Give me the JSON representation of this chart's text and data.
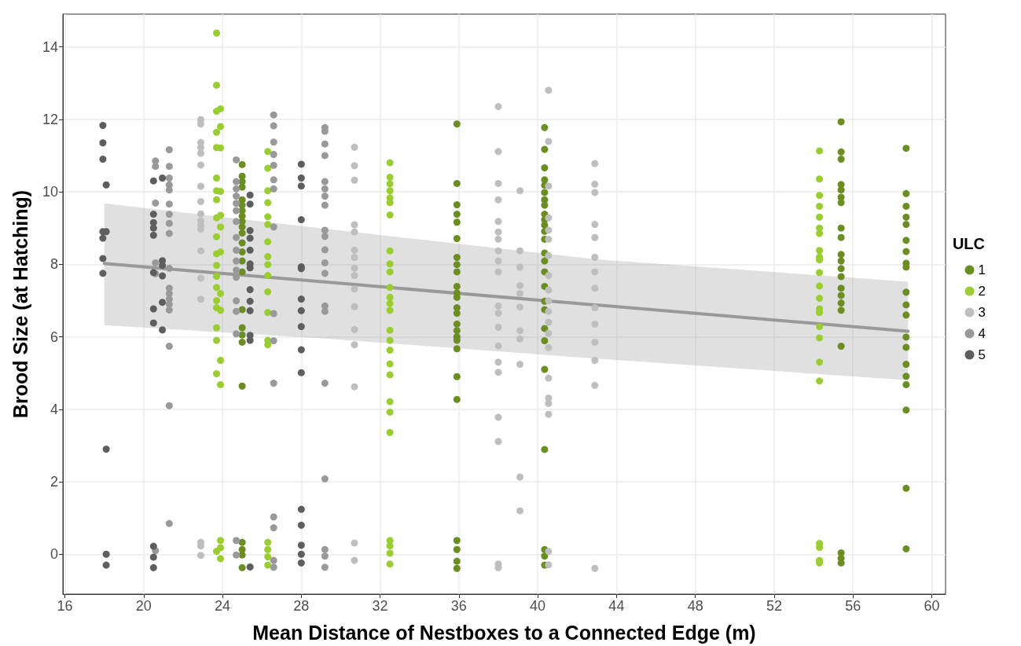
{
  "chart_data": {
    "type": "scatter",
    "xlabel": "Mean Distance of Nestboxes to a Connected Edge (m)",
    "ylabel": "Brood Size (at Hatching)",
    "legend_title": "ULC",
    "xlim": [
      15.9,
      60.7
    ],
    "ylim": [
      -1.1,
      14.9
    ],
    "xticks": [
      16,
      20,
      24,
      28,
      32,
      36,
      40,
      44,
      48,
      52,
      56,
      60
    ],
    "yticks": [
      0,
      2,
      4,
      6,
      8,
      10,
      12,
      14
    ],
    "grid": true,
    "legend": "right",
    "series": [
      {
        "name": "1",
        "color": "#6b8e23",
        "marker": "circle",
        "x": [
          25.0,
          25.0,
          25.0,
          25.0,
          25.0,
          25.0,
          25.0,
          25.0,
          25.0,
          25.0,
          25.0,
          25.0,
          25.0,
          25.0,
          25.0,
          25.0,
          25.0,
          25.0,
          25.0,
          25.0,
          25.0,
          25.0,
          25.0,
          25.0,
          35.9,
          35.9,
          35.9,
          35.9,
          35.9,
          35.9,
          35.9,
          35.9,
          35.9,
          35.9,
          35.9,
          35.9,
          35.9,
          35.9,
          35.9,
          35.9,
          35.9,
          35.9,
          35.9,
          35.9,
          35.9,
          35.9,
          35.9,
          35.9,
          35.9,
          40.35,
          40.35,
          40.35,
          40.35,
          40.35,
          40.35,
          40.35,
          40.35,
          40.35,
          40.35,
          40.35,
          40.35,
          40.35,
          40.35,
          40.35,
          40.35,
          40.35,
          40.35,
          40.35,
          40.35,
          40.35,
          40.35,
          40.35,
          40.35,
          40.35,
          40.35,
          55.4,
          55.4,
          55.4,
          55.4,
          55.4,
          55.4,
          55.4,
          55.4,
          55.4,
          55.4,
          55.4,
          55.4,
          55.4,
          55.4,
          55.4,
          55.4,
          55.4,
          55.4,
          55.4,
          55.4,
          55.4,
          58.7,
          58.7,
          58.7,
          58.7,
          58.7,
          58.7,
          58.7,
          58.7,
          58.7,
          58.7,
          58.7,
          58.7,
          58.7,
          58.7,
          58.7,
          58.7,
          58.7,
          58.7,
          58.7,
          58.7
        ],
        "values": [
          10.75,
          10.43,
          10.28,
          10.13,
          9.78,
          9.63,
          9.48,
          9.33,
          9.18,
          9.03,
          8.86,
          8.59,
          8.34,
          8.09,
          7.79,
          6.75,
          6.25,
          6.05,
          5.85,
          4.64,
          0.33,
          0.13,
          -0.02,
          -0.37,
          11.87,
          10.23,
          9.64,
          9.38,
          9.16,
          8.71,
          8.19,
          7.99,
          7.79,
          7.39,
          7.21,
          7.09,
          6.8,
          6.65,
          6.35,
          6.17,
          6.0,
          5.9,
          5.67,
          4.9,
          4.27,
          0.38,
          0.13,
          -0.19,
          -0.39,
          11.77,
          11.17,
          10.66,
          10.33,
          10.18,
          9.98,
          9.78,
          9.63,
          9.38,
          9.23,
          9.08,
          8.91,
          8.69,
          8.31,
          8.09,
          7.79,
          7.39,
          6.98,
          6.75,
          6.23,
          5.89,
          5.1,
          2.89,
          0.13,
          -0.05,
          -0.3,
          11.93,
          11.1,
          10.9,
          10.2,
          10.05,
          9.85,
          9.7,
          9.0,
          8.74,
          8.27,
          8.09,
          7.88,
          7.66,
          7.34,
          7.14,
          6.93,
          6.73,
          5.74,
          0.04,
          -0.11,
          -0.24,
          11.2,
          9.95,
          9.6,
          9.3,
          9.1,
          8.66,
          8.35,
          8.03,
          7.92,
          7.23,
          6.88,
          6.6,
          5.99,
          5.71,
          5.24,
          4.91,
          4.68,
          3.98,
          1.82,
          0.15
        ]
      },
      {
        "name": "2",
        "color": "#9acd32",
        "marker": "circle",
        "x": [
          23.7,
          23.7,
          23.7,
          23.7,
          23.7,
          23.7,
          23.7,
          23.7,
          23.7,
          23.7,
          23.7,
          23.7,
          23.7,
          23.7,
          23.7,
          23.7,
          23.7,
          23.7,
          23.7,
          23.7,
          23.9,
          23.9,
          23.9,
          23.9,
          23.9,
          23.9,
          23.9,
          23.9,
          23.9,
          23.9,
          23.9,
          23.9,
          23.9,
          23.9,
          26.3,
          26.3,
          26.3,
          26.3,
          26.3,
          26.3,
          26.3,
          26.3,
          26.3,
          26.3,
          26.3,
          26.3,
          26.3,
          26.3,
          26.3,
          26.3,
          26.3,
          26.3,
          32.5,
          32.5,
          32.5,
          32.5,
          32.5,
          32.5,
          32.5,
          32.5,
          32.5,
          32.5,
          32.5,
          32.5,
          32.5,
          32.5,
          32.5,
          32.5,
          32.5,
          32.5,
          32.5,
          32.5,
          32.5,
          32.5,
          32.5,
          32.5,
          32.5,
          32.5,
          54.3,
          54.3,
          54.3,
          54.3,
          54.3,
          54.3,
          54.3,
          54.3,
          54.3,
          54.3,
          54.3,
          54.3,
          54.3,
          54.3,
          54.3,
          54.3,
          54.3,
          54.3,
          54.3,
          54.3,
          54.3,
          54.3,
          54.3
        ],
        "values": [
          14.38,
          12.94,
          12.22,
          11.64,
          11.22,
          10.38,
          10.03,
          9.78,
          9.28,
          8.76,
          8.29,
          7.97,
          7.67,
          7.36,
          7.0,
          6.8,
          6.25,
          5.9,
          4.98,
          0.08,
          12.29,
          11.8,
          11.21,
          10.01,
          9.35,
          9.03,
          8.34,
          7.19,
          6.73,
          5.35,
          4.68,
          0.38,
          0.18,
          -0.12,
          11.11,
          10.65,
          10.03,
          9.7,
          9.31,
          9.1,
          8.62,
          8.21,
          7.99,
          7.69,
          7.24,
          6.67,
          5.9,
          5.78,
          0.33,
          0.13,
          -0.07,
          -0.3,
          10.8,
          10.4,
          10.22,
          10.03,
          9.83,
          9.7,
          9.36,
          8.37,
          8.01,
          7.79,
          7.36,
          7.09,
          6.92,
          6.73,
          6.18,
          5.9,
          5.63,
          5.25,
          4.95,
          4.21,
          3.92,
          3.36,
          0.38,
          0.23,
          0.03,
          -0.27,
          11.13,
          10.35,
          9.9,
          9.6,
          9.3,
          9.0,
          8.85,
          8.38,
          8.2,
          8.12,
          7.77,
          7.4,
          7.06,
          6.77,
          6.67,
          6.28,
          5.97,
          5.3,
          4.78,
          0.3,
          0.19,
          -0.17,
          -0.24
        ]
      },
      {
        "name": "3",
        "color": "#bebebe",
        "marker": "circle",
        "x": [
          22.9,
          22.9,
          22.9,
          22.9,
          22.9,
          22.9,
          22.9,
          22.9,
          22.9,
          22.9,
          22.9,
          22.9,
          22.9,
          22.9,
          22.9,
          22.9,
          22.9,
          22.9,
          30.7,
          30.7,
          30.7,
          30.7,
          30.7,
          30.7,
          30.7,
          30.7,
          30.7,
          30.7,
          30.7,
          30.7,
          30.7,
          30.7,
          30.7,
          30.7,
          38.0,
          38.0,
          38.0,
          38.0,
          38.0,
          38.0,
          38.0,
          38.0,
          38.0,
          38.0,
          38.0,
          38.0,
          38.0,
          38.0,
          38.0,
          38.0,
          38.0,
          38.0,
          38.0,
          38.0,
          39.1,
          39.1,
          39.1,
          39.1,
          39.1,
          39.1,
          39.1,
          39.1,
          39.1,
          39.1,
          39.1,
          40.55,
          40.55,
          40.55,
          40.55,
          40.55,
          40.55,
          40.55,
          40.55,
          40.55,
          40.55,
          40.55,
          40.55,
          40.55,
          40.55,
          40.55,
          40.55,
          40.55,
          40.55,
          40.55,
          40.55,
          42.9,
          42.9,
          42.9,
          42.9,
          42.9,
          42.9,
          42.9,
          42.9,
          42.9,
          42.9,
          42.9,
          42.9,
          42.9,
          42.9
        ],
        "values": [
          11.99,
          11.87,
          11.36,
          11.22,
          11.06,
          10.74,
          10.15,
          9.73,
          9.39,
          9.2,
          9.08,
          8.97,
          8.37,
          7.62,
          7.04,
          0.33,
          0.23,
          -0.03,
          11.23,
          10.72,
          10.32,
          9.09,
          8.89,
          8.39,
          8.19,
          7.89,
          7.69,
          7.32,
          6.83,
          6.2,
          5.78,
          4.62,
          0.31,
          -0.17,
          12.35,
          11.11,
          10.23,
          9.78,
          9.18,
          8.89,
          8.69,
          8.37,
          8.09,
          7.79,
          6.85,
          6.65,
          6.26,
          5.75,
          5.3,
          5.02,
          3.78,
          3.11,
          -0.27,
          -0.37,
          10.03,
          8.37,
          7.92,
          7.41,
          7.19,
          6.82,
          6.17,
          5.94,
          5.24,
          2.13,
          1.2,
          12.8,
          11.39,
          10.16,
          9.28,
          8.94,
          8.69,
          8.24,
          7.69,
          7.29,
          6.99,
          6.7,
          6.4,
          6.1,
          5.7,
          4.86,
          4.31,
          4.16,
          3.86,
          0.08,
          -0.29,
          10.78,
          10.21,
          9.98,
          9.1,
          8.74,
          8.19,
          7.79,
          7.34,
          6.8,
          6.35,
          5.85,
          5.35,
          4.66,
          -0.39
        ]
      },
      {
        "name": "4",
        "color": "#999999",
        "marker": "circle",
        "x": [
          20.6,
          20.6,
          20.6,
          20.6,
          20.6,
          20.6,
          21.3,
          21.3,
          21.3,
          21.3,
          21.3,
          21.3,
          21.3,
          21.3,
          21.3,
          21.3,
          21.3,
          21.3,
          21.3,
          21.3,
          21.3,
          21.3,
          21.3,
          21.3,
          24.7,
          24.7,
          24.7,
          24.7,
          24.7,
          24.7,
          24.7,
          24.7,
          24.7,
          24.7,
          24.7,
          24.7,
          24.7,
          24.7,
          24.7,
          24.7,
          24.7,
          26.6,
          26.6,
          26.6,
          26.6,
          26.6,
          26.6,
          26.6,
          26.6,
          26.6,
          26.6,
          26.6,
          26.6,
          26.6,
          26.6,
          26.6,
          29.2,
          29.2,
          29.2,
          29.2,
          29.2,
          29.2,
          29.2,
          29.2,
          29.2,
          29.2,
          29.2,
          29.2,
          29.2,
          29.2,
          29.2,
          29.2,
          29.2,
          29.2,
          29.2,
          29.2
        ],
        "values": [
          10.85,
          10.7,
          9.69,
          8.04,
          7.74,
          0.1,
          11.16,
          10.7,
          10.38,
          10.19,
          10.05,
          9.66,
          9.38,
          9.13,
          8.85,
          7.89,
          7.34,
          7.19,
          7.04,
          6.9,
          6.74,
          5.74,
          4.1,
          0.85,
          10.88,
          10.28,
          10.08,
          9.88,
          9.68,
          9.48,
          9.18,
          8.74,
          8.39,
          8.09,
          7.84,
          7.64,
          6.99,
          6.7,
          6.08,
          0.38,
          -0.02,
          12.12,
          11.82,
          11.37,
          11.03,
          10.73,
          10.33,
          10.08,
          9.03,
          6.64,
          5.89,
          4.72,
          1.03,
          0.73,
          -0.17,
          -0.36,
          11.77,
          11.67,
          11.32,
          11.0,
          10.28,
          10.08,
          9.88,
          9.63,
          8.94,
          8.77,
          8.4,
          8.04,
          7.75,
          6.85,
          6.7,
          4.72,
          2.08,
          0.13,
          -0.05,
          -0.36
        ]
      },
      {
        "name": "5",
        "color": "#5e5e5e",
        "marker": "circle",
        "x": [
          17.93,
          17.93,
          17.93,
          17.93,
          17.93,
          17.93,
          17.93,
          18.1,
          18.1,
          18.1,
          18.1,
          18.1,
          20.5,
          20.5,
          20.5,
          20.5,
          20.5,
          20.5,
          20.5,
          20.5,
          20.5,
          20.5,
          20.5,
          20.95,
          20.95,
          20.95,
          20.95,
          20.95,
          20.95,
          25.4,
          25.4,
          25.4,
          25.4,
          25.4,
          25.4,
          25.4,
          25.4,
          25.4,
          25.4,
          25.4,
          25.4,
          25.4,
          28.0,
          28.0,
          28.0,
          28.0,
          28.0,
          28.0,
          28.0,
          28.0,
          28.0,
          28.0,
          28.0,
          28.0,
          28.0,
          28.0,
          28.0,
          28.0
        ],
        "values": [
          11.83,
          11.35,
          10.9,
          8.9,
          8.72,
          8.16,
          7.75,
          10.19,
          8.9,
          2.9,
          0,
          -0.3,
          10.3,
          9.38,
          9.15,
          9.0,
          8.8,
          7.77,
          6.77,
          6.38,
          0.22,
          -0.08,
          -0.37,
          10.38,
          8.1,
          7.97,
          7.68,
          6.95,
          6.19,
          9.91,
          9.66,
          8.93,
          8.72,
          8.39,
          8.01,
          7.9,
          7.3,
          6.98,
          6.72,
          6.04,
          5.9,
          -0.35,
          10.76,
          10.38,
          10.16,
          9.23,
          7.93,
          7.88,
          7.04,
          6.72,
          6.28,
          5.64,
          5.01,
          1.24,
          0.8,
          0.25,
          0,
          -0.24
        ]
      },
      {
        "type": "line",
        "color": "#999999",
        "marker": "none",
        "x": [
          18,
          29.2,
          42.9,
          58.8
        ],
        "values": [
          8.02,
          7.51,
          6.88,
          6.15
        ],
        "lower": [
          6.32,
          5.95,
          5.4,
          4.8
        ],
        "upper": [
          9.68,
          8.98,
          8.14,
          7.52
        ]
      }
    ]
  }
}
